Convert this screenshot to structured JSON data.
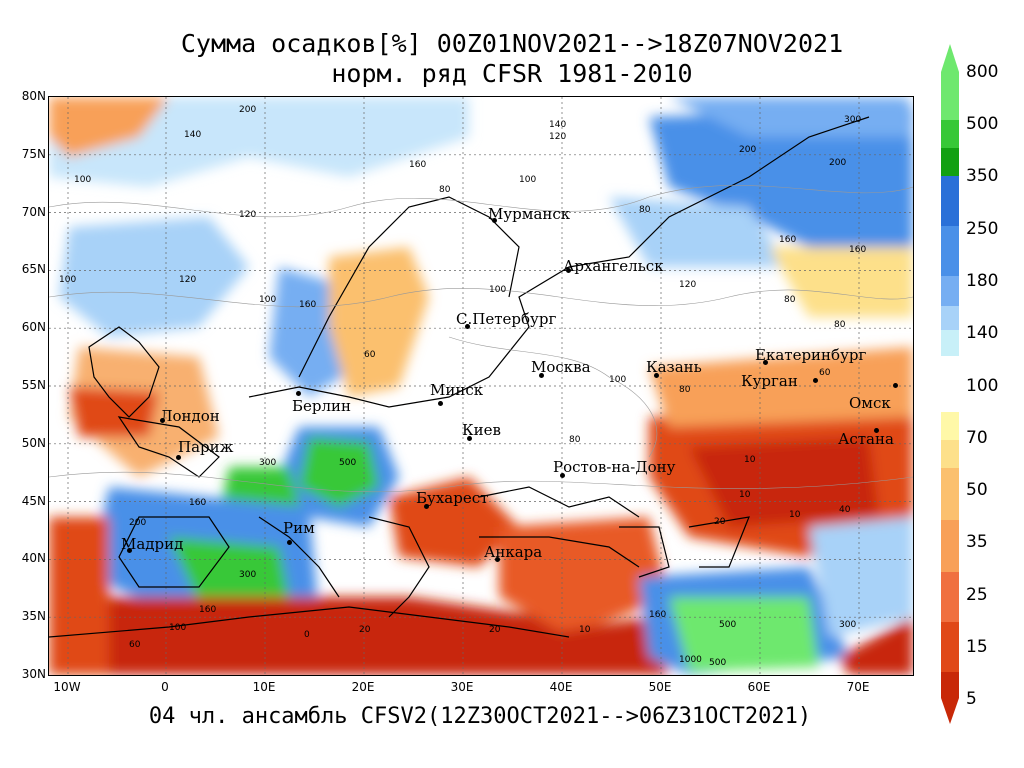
{
  "title": {
    "line1": "Сумма осадков[%] 00Z01NOV2021-->18Z07NOV2021",
    "line2": "норм. ряд CFSR 1981-2010"
  },
  "footer": "04 чл. ансамбль CFSV2(12Z30OCT2021-->06Z31OCT2021)",
  "axes": {
    "lat_labels": [
      "80N",
      "75N",
      "70N",
      "65N",
      "60N",
      "55N",
      "50N",
      "45N",
      "40N",
      "35N",
      "30N"
    ],
    "lon_labels": [
      "10W",
      "0",
      "10E",
      "20E",
      "30E",
      "40E",
      "50E",
      "60E",
      "70E"
    ]
  },
  "colorbar": {
    "labels": [
      "800",
      "500",
      "350",
      "250",
      "180",
      "140",
      "100",
      "70",
      "50",
      "35",
      "25",
      "15",
      "5"
    ],
    "colors": [
      "#6ee86e",
      "#37c837",
      "#12a012",
      "#2a70d8",
      "#4a90e8",
      "#76aef2",
      "#a8d2f8",
      "#c8f0f8",
      "#ffffff",
      "#fff8a8",
      "#fde08a",
      "#fbc06e",
      "#f8a058",
      "#f07040",
      "#e04818",
      "#c82808"
    ]
  },
  "cities": [
    {
      "name": "Мурманск"
    },
    {
      "name": "Архангельск"
    },
    {
      "name": "С.Петербург"
    },
    {
      "name": "Москва"
    },
    {
      "name": "Казань"
    },
    {
      "name": "Екатеринбург"
    },
    {
      "name": "Курган"
    },
    {
      "name": "Омск"
    },
    {
      "name": "Астана"
    },
    {
      "name": "Минск"
    },
    {
      "name": "Берлин"
    },
    {
      "name": "Лондон"
    },
    {
      "name": "Париж"
    },
    {
      "name": "Киев"
    },
    {
      "name": "Ростов-на-Дону"
    },
    {
      "name": "Бухарест"
    },
    {
      "name": "Рим"
    },
    {
      "name": "Мадрид"
    },
    {
      "name": "Анкара"
    }
  ],
  "contour_labels": [
    "200",
    "160",
    "140",
    "120",
    "100",
    "80",
    "60",
    "40",
    "20",
    "10",
    "300",
    "500",
    "1000",
    "0"
  ]
}
